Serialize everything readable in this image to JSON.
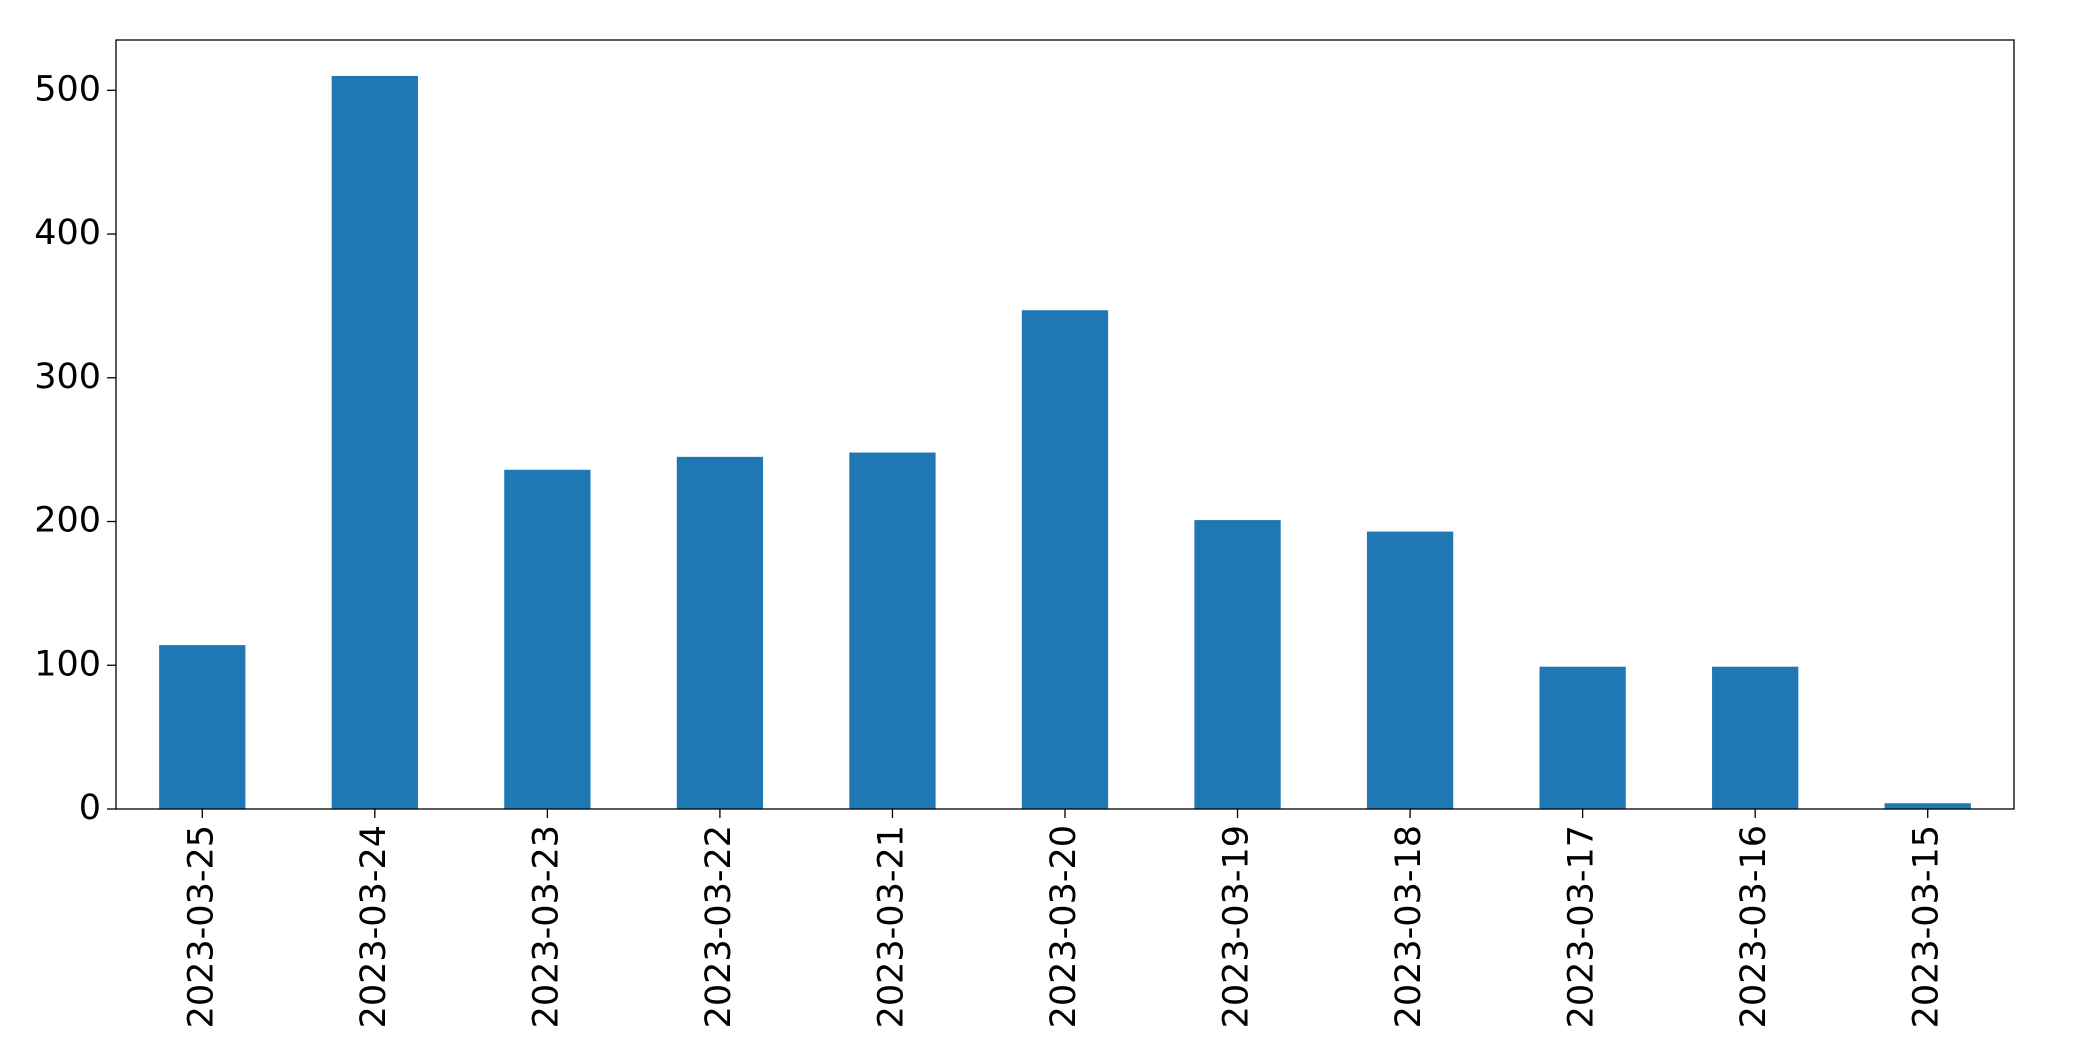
{
  "chart_data": {
    "type": "bar",
    "categories": [
      "2023-03-25",
      "2023-03-24",
      "2023-03-23",
      "2023-03-22",
      "2023-03-21",
      "2023-03-20",
      "2023-03-19",
      "2023-03-18",
      "2023-03-17",
      "2023-03-16",
      "2023-03-15"
    ],
    "values": [
      114,
      510,
      236,
      245,
      248,
      347,
      201,
      193,
      99,
      99,
      4
    ],
    "color": "#1f77b4",
    "ylim": [
      0,
      535
    ],
    "yticks": [
      0,
      100,
      200,
      300,
      400,
      500
    ],
    "grid": false
  }
}
